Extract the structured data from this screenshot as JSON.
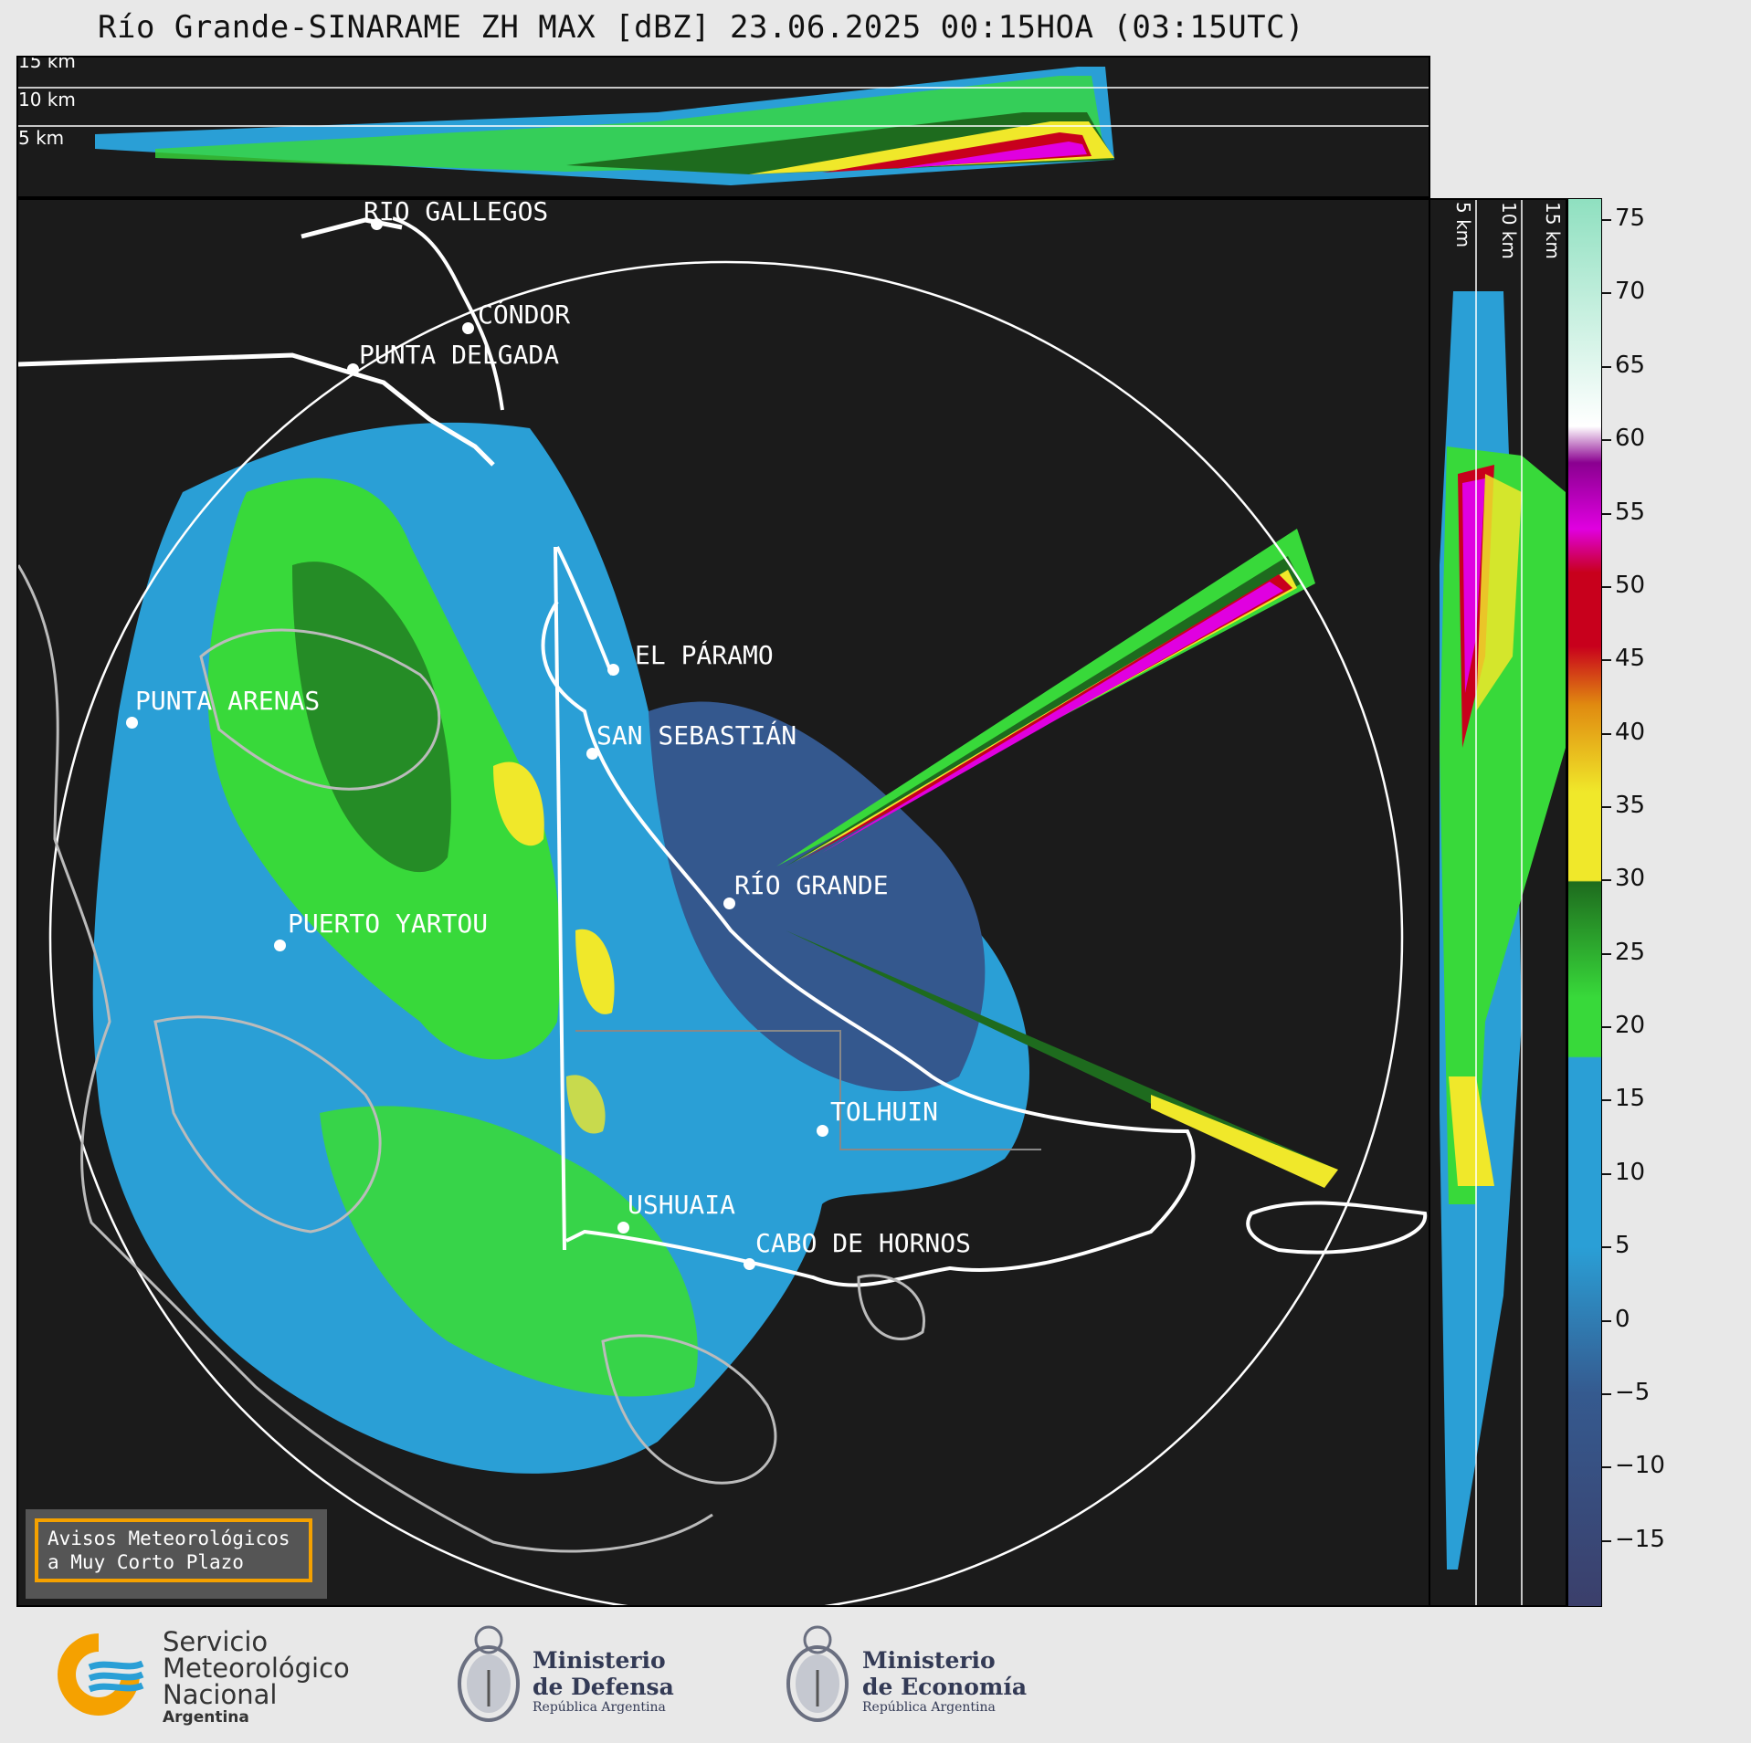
{
  "title": "Río Grande-SINARAME ZH MAX [dBZ] 23.06.2025 00:15HOA (03:15UTC)",
  "top_profile": {
    "levels": [
      "15 km",
      "10 km",
      "5 km"
    ]
  },
  "side_profile": {
    "levels": [
      "5 km",
      "10 km",
      "15 km"
    ]
  },
  "cities": [
    {
      "name": "RÍO GALLEGOS"
    },
    {
      "name": "CÓNDOR"
    },
    {
      "name": "PUNTA DELGADA"
    },
    {
      "name": "EL PÁRAMO"
    },
    {
      "name": "PUNTA ARENAS"
    },
    {
      "name": "SAN SEBASTIÁN"
    },
    {
      "name": "RÍO GRANDE"
    },
    {
      "name": "PUERTO YARTOU"
    },
    {
      "name": "TOLHUIN"
    },
    {
      "name": "USHUAIA"
    },
    {
      "name": "CABO DE HORNOS"
    }
  ],
  "colorbar": {
    "unit": "dBZ",
    "min": -19.5,
    "max": 76.5,
    "ticks": [
      "75",
      "70",
      "65",
      "60",
      "55",
      "50",
      "45",
      "40",
      "35",
      "30",
      "25",
      "20",
      "15",
      "10",
      "5",
      "0",
      "−5",
      "−10",
      "−15"
    ],
    "tick_values": [
      75,
      70,
      65,
      60,
      55,
      50,
      45,
      40,
      35,
      30,
      25,
      20,
      15,
      10,
      5,
      0,
      -5,
      -10,
      -15
    ],
    "colors": {
      "low": "#3b3f6b",
      "blue": "#2a9fd6",
      "green": "#38d93a",
      "dark_green": "#1e6b1e",
      "yellow": "#f0e82a",
      "orange": "#e08a10",
      "red": "#c8001c",
      "magenta": "#e000e0",
      "purple": "#8a0090",
      "white": "#ffffff",
      "mint": "#8fe0c0"
    }
  },
  "aviso": {
    "line1": "Avisos Meteorológicos",
    "line2": "a Muy Corto Plazo"
  },
  "logos": {
    "smn": {
      "line1": "Servicio",
      "line2": "Meteorológico",
      "line3": "Nacional",
      "line4": "Argentina"
    },
    "defensa": {
      "line1": "Ministerio",
      "line2": "de Defensa",
      "line3": "República Argentina"
    },
    "economia": {
      "line1": "Ministerio",
      "line2": "de Economía",
      "line3": "República Argentina"
    }
  }
}
